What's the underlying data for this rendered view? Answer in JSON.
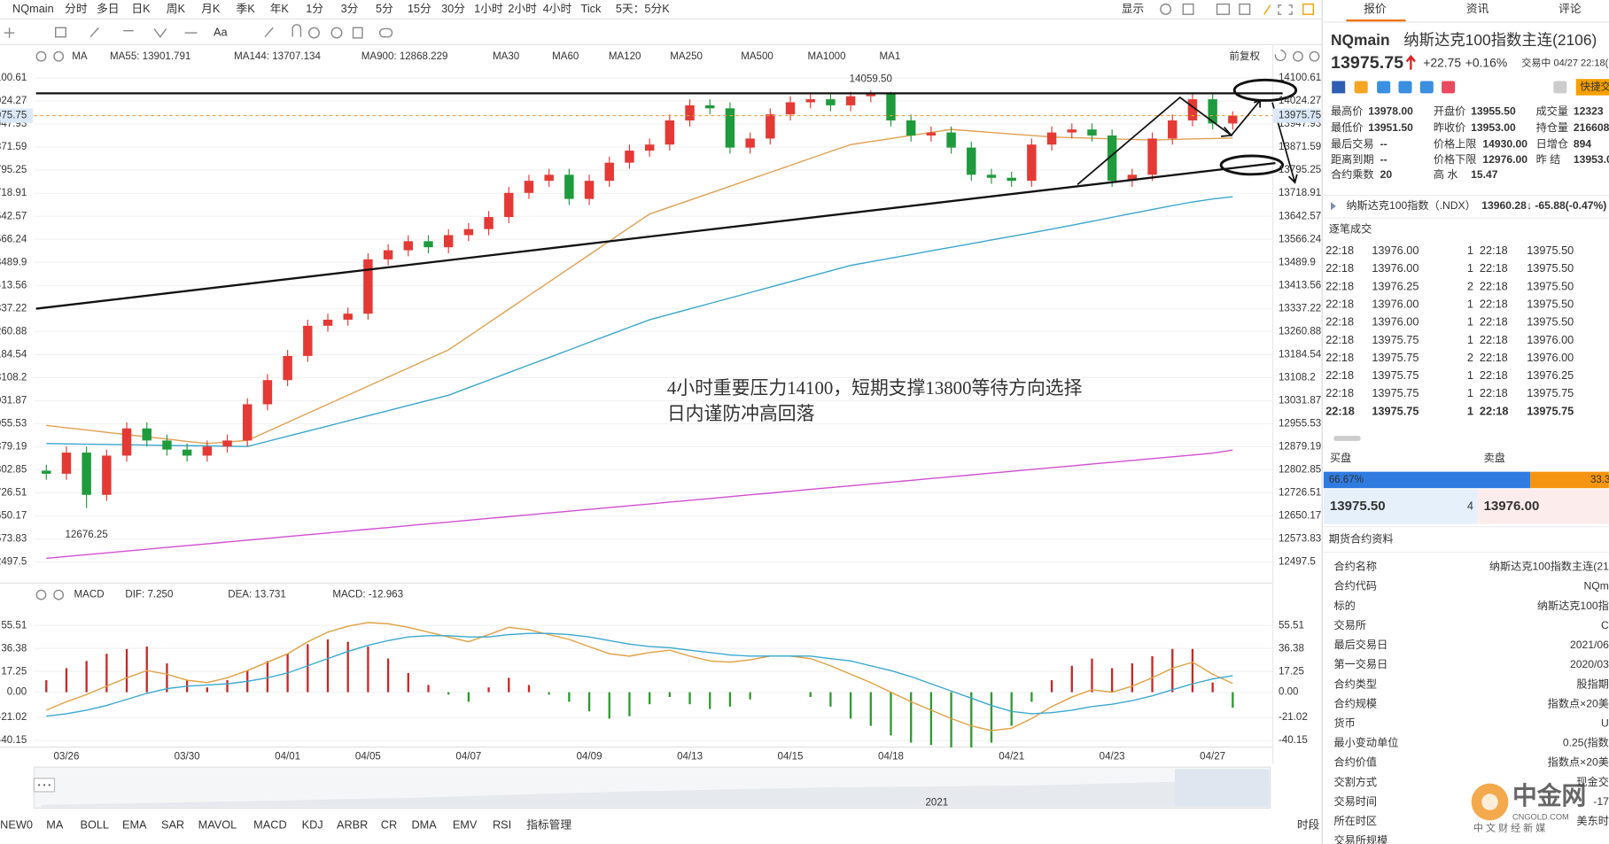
{
  "toolbar": {
    "symbol": "NQmain",
    "periods": [
      "分时",
      "多日",
      "日K",
      "周K",
      "月K",
      "季K",
      "年K",
      "1分",
      "3分",
      "5分",
      "15分",
      "30分",
      "1小时",
      "2小时",
      "4小时",
      "Tick",
      "5天：5分K"
    ],
    "display": "显示",
    "tool_text": "Aa"
  },
  "chart_data": [
    {
      "type": "candlestick",
      "indicator": "MA",
      "adjust": "前复权",
      "categories": [
        null,
        "03/26",
        null,
        null,
        null,
        null,
        null,
        "03/30",
        null,
        null,
        null,
        null,
        "04/01",
        null,
        null,
        null,
        "04/05",
        null,
        null,
        null,
        null,
        "04/07",
        null,
        null,
        null,
        null,
        null,
        "04/09",
        null,
        null,
        null,
        null,
        "04/13",
        null,
        null,
        null,
        null,
        "04/15",
        null,
        null,
        null,
        null,
        "04/18",
        null,
        null,
        null,
        null,
        null,
        "04/21",
        null,
        null,
        null,
        null,
        "04/23",
        null,
        null,
        null,
        null,
        "04/27",
        null
      ],
      "open": [
        12800,
        12790,
        12860,
        12720,
        12850,
        12940,
        12900,
        12870,
        12850,
        12880,
        12900,
        13020,
        13100,
        13180,
        13280,
        13300,
        13320,
        13500,
        13530,
        13560,
        13540,
        13580,
        13600,
        13640,
        13720,
        13760,
        13780,
        13700,
        13760,
        13820,
        13860,
        13880,
        13960,
        14010,
        14000,
        13870,
        13900,
        13980,
        14020,
        14030,
        14010,
        14040,
        14050,
        13960,
        13910,
        13920,
        13870,
        13780,
        13770,
        13760,
        13880,
        13920,
        13930,
        13910,
        13760,
        13780,
        13900,
        13960,
        14030,
        13950
      ],
      "high": [
        12820,
        12880,
        12880,
        12870,
        12960,
        12960,
        12920,
        12890,
        12900,
        12920,
        13040,
        13120,
        13200,
        13300,
        13320,
        13340,
        13520,
        13550,
        13580,
        13580,
        13600,
        13620,
        13660,
        13740,
        13780,
        13800,
        13800,
        13780,
        13840,
        13880,
        13900,
        13980,
        14030,
        14030,
        14020,
        13920,
        14000,
        14040,
        14050,
        14050,
        14055,
        14059.5,
        14055,
        13980,
        13940,
        13940,
        13890,
        13800,
        13790,
        13900,
        13940,
        13950,
        13950,
        13930,
        13800,
        13920,
        13980,
        14050,
        14050,
        13990
      ],
      "low": [
        12770,
        12770,
        12676.25,
        12700,
        12830,
        12880,
        12850,
        12830,
        12830,
        12860,
        12880,
        13000,
        13080,
        13160,
        13260,
        13280,
        13300,
        13480,
        13510,
        13520,
        13520,
        13560,
        13580,
        13620,
        13700,
        13740,
        13680,
        13680,
        13740,
        13800,
        13840,
        13860,
        13940,
        13980,
        13850,
        13850,
        13880,
        13960,
        14000,
        13990,
        13990,
        14020,
        13940,
        13890,
        13890,
        13850,
        13760,
        13750,
        13740,
        13740,
        13860,
        13900,
        13890,
        13740,
        13740,
        13760,
        13880,
        13940,
        13930,
        13930
      ],
      "close": [
        12790,
        12860,
        12720,
        12850,
        12940,
        12900,
        12870,
        12850,
        12880,
        12900,
        13020,
        13100,
        13180,
        13280,
        13300,
        13320,
        13500,
        13530,
        13560,
        13540,
        13580,
        13600,
        13640,
        13720,
        13760,
        13780,
        13700,
        13760,
        13820,
        13860,
        13880,
        13960,
        14010,
        14000,
        13870,
        13900,
        13980,
        14020,
        14030,
        14010,
        14040,
        14050,
        13960,
        13910,
        13920,
        13870,
        13780,
        13770,
        13760,
        13880,
        13920,
        13930,
        13910,
        13760,
        13780,
        13900,
        13960,
        14030,
        13950,
        13975.75
      ],
      "up_color": "#e53935",
      "down_color": "#1e9b3c",
      "last_price_color": "#e8a040",
      "ma_series": [
        {
          "name": "MA55: 13901.791",
          "color": "#e0a050",
          "values": [
            12950,
            12942,
            12935,
            12927,
            12920,
            12912,
            12905,
            12897,
            12890,
            12895,
            12900,
            12930,
            12960,
            12990,
            13020,
            13050,
            13080,
            13110,
            13140,
            13170,
            13200,
            13245,
            13290,
            13335,
            13380,
            13425,
            13470,
            13515,
            13560,
            13605,
            13650,
            13673,
            13696,
            13719,
            13742,
            13765,
            13788,
            13811,
            13834,
            13857,
            13880,
            13890,
            13900,
            13910,
            13920,
            13930,
            13925,
            13920,
            13915,
            13910,
            13905,
            13903,
            13901,
            13899,
            13897,
            13895,
            13897,
            13899,
            13900,
            13901.791
          ]
        },
        {
          "name": "MA144: 13707.134",
          "color": "#3aa6cc",
          "values": [
            12890,
            12889,
            12888,
            12887,
            12886,
            12885,
            12884,
            12883,
            12882,
            12881,
            12880,
            12897,
            12914,
            12931,
            12948,
            12965,
            12982,
            12999,
            13016,
            13033,
            13050,
            13075,
            13100,
            13125,
            13150,
            13175,
            13200,
            13225,
            13250,
            13275,
            13300,
            13318,
            13336,
            13354,
            13372,
            13390,
            13408,
            13426,
            13444,
            13462,
            13480,
            13492,
            13504,
            13516,
            13528,
            13540,
            13552,
            13564,
            13576,
            13588,
            13600,
            13613,
            13626,
            13639,
            13652,
            13665,
            13678,
            13690,
            13700,
            13707.134
          ]
        },
        {
          "name": "MA900: 12868.229",
          "color": "#d24fd2",
          "values": [
            12510,
            12516,
            12522,
            12528,
            12534,
            12540,
            12546,
            12552,
            12558,
            12564,
            12570,
            12576,
            12582,
            12588,
            12594,
            12600,
            12606,
            12612,
            12618,
            12624,
            12630,
            12636,
            12642,
            12648,
            12654,
            12660,
            12666,
            12672,
            12678,
            12684,
            12690,
            12696,
            12702,
            12708,
            12714,
            12720,
            12726,
            12732,
            12738,
            12744,
            12750,
            12756,
            12762,
            12768,
            12774,
            12780,
            12786,
            12792,
            12798,
            12804,
            12810,
            12816,
            12822,
            12828,
            12834,
            12840,
            12846,
            12852,
            12858,
            12868.229
          ]
        }
      ],
      "inactive_ma": [
        "MA30",
        "MA60",
        "MA120",
        "MA250",
        "MA500",
        "MA1000",
        "MA1"
      ],
      "ylim": [
        12440,
        14134.6
      ],
      "yticks": [
        14100.61,
        14024.27,
        13947.93,
        13871.59,
        13795.25,
        13718.91,
        13642.57,
        13566.24,
        13489.9,
        13413.56,
        13337.22,
        13260.88,
        13184.54,
        13108.2,
        13031.87,
        12955.53,
        12879.19,
        12802.85,
        12726.51,
        12650.17,
        12573.83,
        12497.5
      ],
      "high_label": "14059.50",
      "low_label": "12676.25",
      "annotation": [
        "4小时重要压力14100，短期支撑13800等待方向选择",
        "日内谨防冲高回落"
      ]
    },
    {
      "type": "macd",
      "indicator": "MACD",
      "series": [
        {
          "name": "DIF: 7.250",
          "color": "#e0a040",
          "values": [
            -15,
            -8,
            -2,
            5,
            12,
            18,
            15,
            10,
            8,
            12,
            18,
            25,
            32,
            42,
            50,
            55,
            58,
            57,
            54,
            50,
            46,
            42,
            48,
            54,
            52,
            48,
            44,
            38,
            32,
            30,
            33,
            35,
            30,
            26,
            25,
            27,
            30,
            30,
            28,
            22,
            15,
            8,
            0,
            -8,
            -15,
            -22,
            -28,
            -32,
            -30,
            -22,
            -12,
            -4,
            2,
            0,
            5,
            12,
            20,
            25,
            15,
            7.25
          ]
        },
        {
          "name": "DEA: 13.731",
          "color": "#3aa8d0",
          "values": [
            -20,
            -18,
            -15,
            -11,
            -6,
            -1,
            3,
            5,
            6,
            7,
            9,
            12,
            16,
            22,
            28,
            34,
            39,
            43,
            46,
            47,
            47,
            46,
            46,
            48,
            49,
            49,
            48,
            46,
            43,
            40,
            38,
            37,
            35,
            33,
            31,
            30,
            30,
            30,
            30,
            28,
            26,
            22,
            18,
            13,
            7,
            1,
            -5,
            -11,
            -16,
            -18,
            -17,
            -15,
            -12,
            -10,
            -7,
            -3,
            2,
            7,
            11,
            13.731
          ]
        }
      ],
      "histogram": {
        "name": "MACD: -12.963",
        "color": "#d24fd2",
        "up_color": "#c62828",
        "down_color": "#2e9a2e",
        "values": [
          10,
          20,
          26,
          32,
          36,
          38,
          24,
          10,
          4,
          10,
          18,
          26,
          32,
          40,
          44,
          42,
          38,
          28,
          16,
          6,
          -2,
          -8,
          4,
          12,
          6,
          -2,
          -8,
          -16,
          -22,
          -20,
          -10,
          -4,
          -10,
          -14,
          -12,
          -6,
          0,
          0,
          -4,
          -12,
          -22,
          -28,
          -36,
          -42,
          -44,
          -46,
          -46,
          -42,
          -28,
          -8,
          10,
          22,
          28,
          20,
          24,
          30,
          36,
          36,
          8,
          -12.963
        ]
      },
      "ylim": [
        -47,
        73
      ],
      "yticks": [
        55.51,
        36.38,
        17.25,
        {
          "value": 0,
          "label": "0.00"
        },
        -21.02,
        -40.15
      ]
    }
  ],
  "navigator": {
    "year": "2021"
  },
  "indicator_tabs": [
    "NEW0",
    "MA",
    "BOLL",
    "EMA",
    "SAR",
    "MAVOL",
    "MACD",
    "KDJ",
    "ARBR",
    "CR",
    "DMA",
    "EMV",
    "RSI",
    "指标管理"
  ],
  "time_range": "时段",
  "quote_panel": {
    "tabs": [
      "报价",
      "资讯",
      "评论"
    ],
    "symbol": "NQmain",
    "name": "纳斯达克100指数主连(2106)",
    "price": "13975.75",
    "change": "+22.75",
    "change_pct": "+0.16%",
    "status": "交易中 04/27 22:18(",
    "quick_trade": "快捷交",
    "stats": [
      [
        {
          "label": "最高价",
          "value": "13978.00",
          "color": "#e02020"
        },
        {
          "label": "开盘价",
          "value": "13955.50",
          "color": "#e02020"
        },
        {
          "label": "成交量",
          "value": "12323",
          "color": "#222"
        }
      ],
      [
        {
          "label": "最低价",
          "value": "13951.50",
          "color": "#1a9a3a"
        },
        {
          "label": "昨收价",
          "value": "13953.00",
          "color": "#222"
        },
        {
          "label": "持仓量",
          "value": "216608",
          "color": "#222"
        }
      ],
      [
        {
          "label": "最后交易",
          "value": "--",
          "color": "#222"
        },
        {
          "label": "价格上限",
          "value": "14930.00",
          "color": "#e02020"
        },
        {
          "label": "日增仓",
          "value": "894",
          "color": "#222"
        }
      ],
      [
        {
          "label": "距离到期",
          "value": "--",
          "color": "#222"
        },
        {
          "label": "价格下限",
          "value": "12976.00",
          "color": "#e02020"
        },
        {
          "label": "昨 结",
          "value": "13953.0",
          "color": "#222"
        }
      ],
      [
        {
          "label": "合约乘数",
          "value": "20",
          "color": "#222"
        },
        {
          "label": "高 水",
          "value": "15.47",
          "color": "#e02020"
        }
      ]
    ],
    "index_name": "纳斯达克100指数（.NDX）",
    "index_quote": "13960.28↓ -65.88(-0.47%)",
    "trades_title": "逐笔成交",
    "trades": [
      [
        "22:18",
        "13976.00",
        "1",
        "22:18",
        "13975.50"
      ],
      [
        "22:18",
        "13976.00",
        "1",
        "22:18",
        "13975.50"
      ],
      [
        "22:18",
        "13976.25",
        "2",
        "22:18",
        "13975.50"
      ],
      [
        "22:18",
        "13976.00",
        "1",
        "22:18",
        "13975.50"
      ],
      [
        "22:18",
        "13976.00",
        "1",
        "22:18",
        "13975.50"
      ],
      [
        "22:18",
        "13975.75",
        "1",
        "22:18",
        "13976.00"
      ],
      [
        "22:18",
        "13975.75",
        "2",
        "22:18",
        "13976.00"
      ],
      [
        "22:18",
        "13975.75",
        "1",
        "22:18",
        "13976.25"
      ],
      [
        "22:18",
        "13975.75",
        "1",
        "22:18",
        "13975.75"
      ],
      [
        "22:18",
        "13975.75",
        "1",
        "22:18",
        "13975.75"
      ]
    ],
    "trade_vol_colors": [
      "#e02020",
      "#e02020",
      "#e02020",
      "#e02020",
      "#e02020",
      "#1a9a3a",
      "#1a9a3a",
      "#e02020",
      "#e02020",
      "#1a9a3a"
    ],
    "book": {
      "buy_title": "买盘",
      "sell_title": "卖盘",
      "buy_ratio": 66.67,
      "buy_ratio_label": "66.67%",
      "sell_ratio_label": "33.3",
      "bid": "13975.50",
      "size": "4",
      "ask": "13976.00"
    },
    "contract_title": "期货合约资料",
    "contract": [
      [
        "合约名称",
        "纳斯达克100指数主连(21"
      ],
      [
        "合约代码",
        "NQm"
      ],
      [
        "标的",
        "纳斯达克100指"
      ],
      [
        "交易所",
        "C"
      ],
      [
        "最后交易日",
        "2021/06"
      ],
      [
        "第一交易日",
        "2020/03"
      ],
      [
        "合约类型",
        "股指期"
      ],
      [
        "合约规模",
        "指数点×20美"
      ],
      [
        "货币",
        "U"
      ],
      [
        "最小变动单位",
        "0.25(指数"
      ],
      [
        "合约价值",
        "指数点×20美"
      ],
      [
        "交割方式",
        "现金交"
      ],
      [
        "交易时间",
        "-17"
      ],
      [
        "所在时区",
        "美东时"
      ],
      [
        "交易所规模"
      ]
    ]
  },
  "watermark": {
    "brand": "中金网",
    "site": "CNGOLD.COM",
    "slogan": "中 文 财 经 新 媒"
  }
}
